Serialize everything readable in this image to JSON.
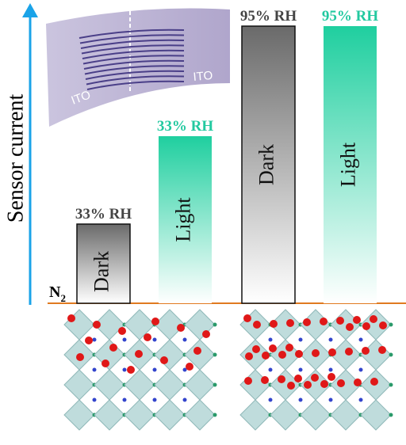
{
  "axis_label": "Sensor current",
  "baseline_label": {
    "text": "N",
    "subscript": "2"
  },
  "electrodes": [
    "ITO",
    "ITO"
  ],
  "bars": [
    {
      "label": "33% RH",
      "inner_label": "Dark"
    },
    {
      "label": "33% RH",
      "inner_label": "Light"
    },
    {
      "label": "95% RH",
      "inner_label": "Dark"
    },
    {
      "label": "95% RH",
      "inner_label": "Light"
    }
  ]
}
